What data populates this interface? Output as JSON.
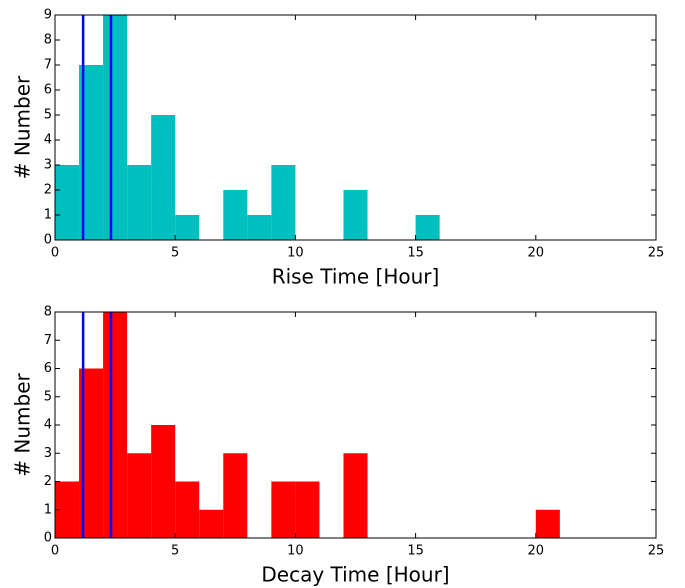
{
  "chart_data": [
    {
      "type": "histogram",
      "xlabel": "Rise Time [Hour]",
      "ylabel": "# Number",
      "bins": [
        0,
        1,
        2,
        3,
        4,
        5,
        6,
        7,
        8,
        9,
        10,
        11,
        12,
        13,
        14,
        15,
        16
      ],
      "counts": [
        3,
        7,
        9,
        3,
        5,
        1,
        0,
        2,
        1,
        3,
        0,
        0,
        2,
        0,
        0,
        1
      ],
      "color": "#00bfbf",
      "xlim": [
        0,
        25
      ],
      "ylim": [
        0,
        9
      ],
      "xticks": [
        0,
        5,
        10,
        15,
        20,
        25
      ],
      "yticks": [
        0,
        1,
        2,
        3,
        4,
        5,
        6,
        7,
        8,
        9
      ],
      "vlines": [
        1.17,
        2.33
      ],
      "vline_color": "#0000ff"
    },
    {
      "type": "histogram",
      "xlabel": "Decay Time [Hour]",
      "ylabel": "# Number",
      "bins": [
        0,
        1,
        2,
        3,
        4,
        5,
        6,
        7,
        8,
        9,
        10,
        11,
        12,
        13,
        14,
        15,
        16,
        17,
        18,
        19,
        20,
        21
      ],
      "counts": [
        2,
        6,
        8,
        3,
        4,
        2,
        1,
        3,
        0,
        2,
        2,
        0,
        3,
        0,
        0,
        0,
        0,
        0,
        0,
        0,
        1
      ],
      "color": "#ff0000",
      "xlim": [
        0,
        25
      ],
      "ylim": [
        0,
        8
      ],
      "xticks": [
        0,
        5,
        10,
        15,
        20,
        25
      ],
      "yticks": [
        0,
        1,
        2,
        3,
        4,
        5,
        6,
        7,
        8
      ],
      "vlines": [
        1.17,
        2.33
      ],
      "vline_color": "#0000ff"
    }
  ]
}
